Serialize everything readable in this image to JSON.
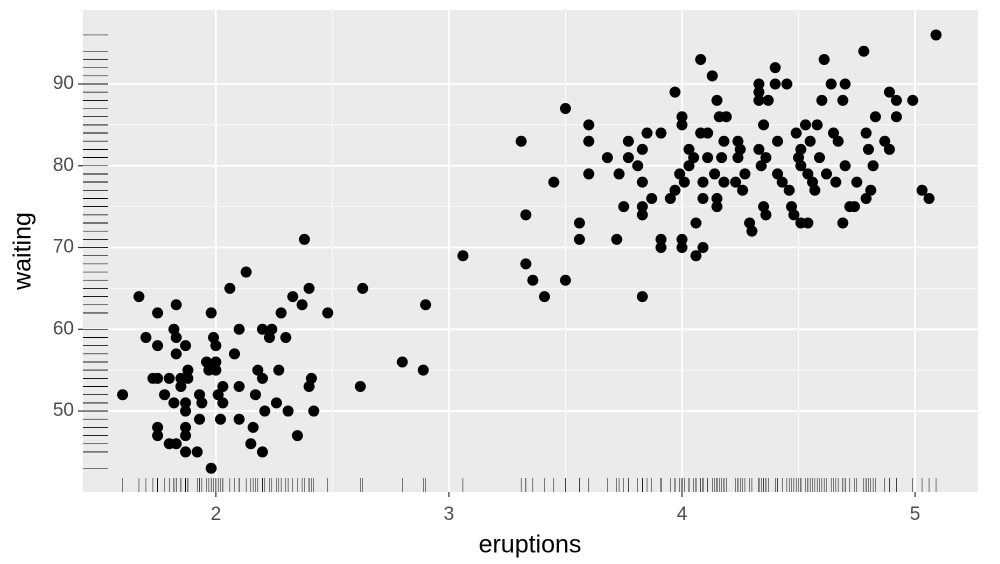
{
  "chart_data": {
    "type": "scatter",
    "x_label": "eruptions",
    "y_label": "waiting",
    "color": "#000000",
    "grid": true,
    "rug": true,
    "xlim": [
      1.43,
      5.27
    ],
    "ylim": [
      40.1,
      99.05
    ],
    "xticks": [
      2,
      3,
      4,
      5
    ],
    "yticks": [
      50,
      60,
      70,
      80,
      90
    ],
    "x": [
      1.6,
      1.67,
      1.7,
      1.73,
      1.75,
      1.75,
      1.75,
      1.75,
      1.75,
      1.78,
      1.8,
      1.8,
      1.82,
      1.82,
      1.83,
      1.83,
      1.83,
      1.83,
      1.85,
      1.85,
      1.87,
      1.87,
      1.87,
      1.87,
      1.87,
      1.87,
      1.88,
      1.88,
      1.92,
      1.93,
      1.93,
      1.94,
      1.96,
      1.97,
      1.98,
      1.98,
      1.99,
      2.0,
      2.0,
      2.0,
      2.01,
      2.02,
      2.03,
      2.03,
      2.06,
      2.08,
      2.1,
      2.1,
      2.1,
      2.13,
      2.15,
      2.16,
      2.17,
      2.18,
      2.2,
      2.2,
      2.2,
      2.21,
      2.23,
      2.24,
      2.26,
      2.27,
      2.28,
      2.3,
      2.31,
      2.33,
      2.35,
      2.37,
      2.38,
      2.4,
      2.4,
      2.41,
      2.42,
      2.48,
      2.62,
      2.63,
      2.8,
      2.89,
      2.9,
      3.06,
      3.31,
      3.33,
      3.33,
      3.36,
      3.41,
      3.45,
      3.5,
      3.5,
      3.56,
      3.56,
      3.6,
      3.6,
      3.6,
      3.68,
      3.72,
      3.73,
      3.75,
      3.77,
      3.77,
      3.81,
      3.83,
      3.83,
      3.83,
      3.83,
      3.83,
      3.85,
      3.87,
      3.91,
      3.91,
      3.91,
      3.95,
      3.97,
      3.97,
      3.99,
      4.0,
      4.0,
      4.0,
      4.0,
      4.01,
      4.03,
      4.03,
      4.05,
      4.06,
      4.06,
      4.08,
      4.08,
      4.09,
      4.09,
      4.09,
      4.11,
      4.11,
      4.13,
      4.14,
      4.15,
      4.15,
      4.15,
      4.16,
      4.17,
      4.18,
      4.18,
      4.19,
      4.23,
      4.24,
      4.24,
      4.25,
      4.26,
      4.27,
      4.29,
      4.3,
      4.33,
      4.33,
      4.33,
      4.33,
      4.34,
      4.35,
      4.35,
      4.36,
      4.36,
      4.37,
      4.4,
      4.4,
      4.41,
      4.41,
      4.43,
      4.45,
      4.46,
      4.47,
      4.48,
      4.49,
      4.5,
      4.51,
      4.51,
      4.51,
      4.53,
      4.54,
      4.54,
      4.55,
      4.56,
      4.57,
      4.58,
      4.59,
      4.6,
      4.61,
      4.62,
      4.64,
      4.65,
      4.66,
      4.67,
      4.69,
      4.69,
      4.7,
      4.7,
      4.72,
      4.74,
      4.75,
      4.78,
      4.79,
      4.79,
      4.8,
      4.81,
      4.82,
      4.83,
      4.87,
      4.89,
      4.89,
      4.92,
      4.92,
      4.99,
      5.03,
      5.06,
      5.09
    ],
    "y": [
      52,
      64,
      59,
      54,
      54,
      62,
      58,
      48,
      47,
      52,
      46,
      54,
      60,
      51,
      46,
      63,
      57,
      59,
      54,
      53,
      50,
      48,
      47,
      45,
      51,
      58,
      55,
      54,
      45,
      52,
      49,
      51,
      56,
      55,
      62,
      43,
      59,
      58,
      56,
      55,
      52,
      49,
      53,
      51,
      65,
      57,
      60,
      53,
      49,
      67,
      46,
      48,
      52,
      55,
      60,
      54,
      45,
      50,
      59,
      60,
      51,
      55,
      62,
      59,
      50,
      64,
      47,
      63,
      71,
      65,
      53,
      54,
      50,
      62,
      53,
      65,
      56,
      55,
      63,
      69,
      83,
      74,
      68,
      66,
      64,
      78,
      87,
      66,
      73,
      71,
      85,
      83,
      79,
      81,
      71,
      79,
      75,
      81,
      83,
      80,
      82,
      78,
      75,
      74,
      64,
      84,
      76,
      84,
      71,
      70,
      76,
      89,
      77,
      79,
      86,
      85,
      71,
      70,
      78,
      82,
      80,
      81,
      73,
      69,
      93,
      84,
      78,
      76,
      70,
      84,
      81,
      91,
      79,
      75,
      88,
      76,
      86,
      81,
      83,
      78,
      86,
      78,
      81,
      83,
      82,
      77,
      79,
      73,
      72,
      88,
      89,
      90,
      82,
      80,
      75,
      85,
      74,
      81,
      88,
      92,
      90,
      83,
      79,
      78,
      90,
      77,
      75,
      74,
      84,
      81,
      80,
      73,
      82,
      85,
      79,
      73,
      83,
      78,
      77,
      85,
      81,
      88,
      93,
      79,
      90,
      84,
      78,
      83,
      88,
      73,
      80,
      90,
      75,
      75,
      78,
      94,
      76,
      84,
      82,
      77,
      80,
      86,
      83,
      82,
      89,
      88,
      86,
      88,
      77,
      76,
      96
    ]
  }
}
